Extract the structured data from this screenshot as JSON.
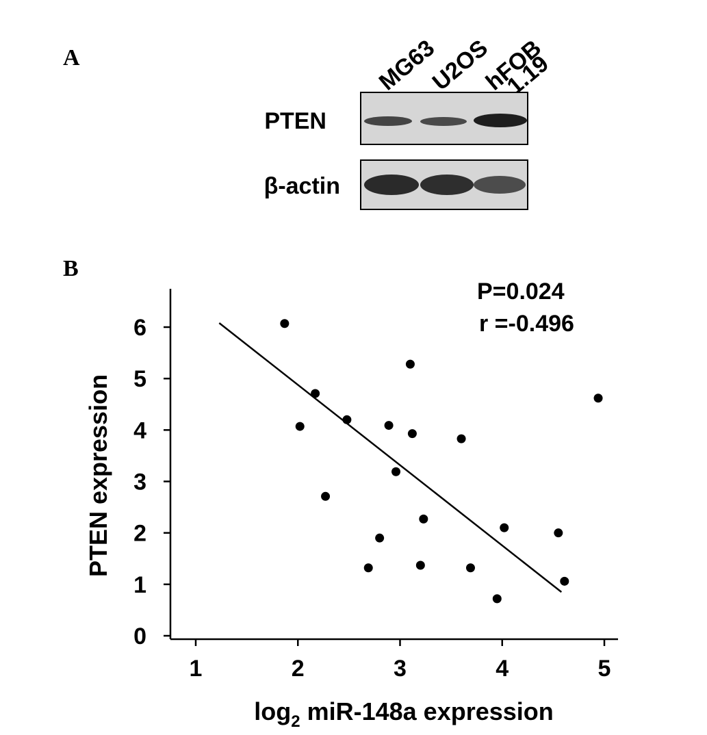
{
  "panel_a": {
    "letter": "A",
    "lanes": [
      "MG63",
      "U2OS",
      "hFOB",
      "1.19"
    ],
    "rows": [
      "PTEN",
      "β-actin"
    ]
  },
  "panel_b": {
    "letter": "B"
  },
  "chart_data": {
    "type": "scatter",
    "xlabel_main": "log",
    "xlabel_sub": "2",
    "xlabel_rest": " miR-148a expression",
    "ylabel": "PTEN expression",
    "xlim": [
      0.75,
      5.1
    ],
    "ylim": [
      -0.1,
      6.75
    ],
    "xticks": [
      1,
      2,
      3,
      4,
      5
    ],
    "yticks": [
      0,
      1,
      2,
      3,
      4,
      5,
      6
    ],
    "annotations": [
      "P=0.024",
      "r =-0.496"
    ],
    "grid": false,
    "points": [
      {
        "x": 1.87,
        "y": 6.07
      },
      {
        "x": 2.17,
        "y": 4.71
      },
      {
        "x": 2.02,
        "y": 4.07
      },
      {
        "x": 2.48,
        "y": 4.2
      },
      {
        "x": 2.27,
        "y": 2.71
      },
      {
        "x": 2.89,
        "y": 4.09
      },
      {
        "x": 2.96,
        "y": 3.19
      },
      {
        "x": 2.8,
        "y": 1.9
      },
      {
        "x": 2.69,
        "y": 1.32
      },
      {
        "x": 3.1,
        "y": 5.28
      },
      {
        "x": 3.12,
        "y": 3.93
      },
      {
        "x": 3.23,
        "y": 2.27
      },
      {
        "x": 3.2,
        "y": 1.37
      },
      {
        "x": 3.6,
        "y": 3.83
      },
      {
        "x": 3.69,
        "y": 1.32
      },
      {
        "x": 4.02,
        "y": 2.1
      },
      {
        "x": 3.95,
        "y": 0.72
      },
      {
        "x": 4.55,
        "y": 2.0
      },
      {
        "x": 4.61,
        "y": 1.06
      },
      {
        "x": 4.94,
        "y": 4.62
      }
    ],
    "fit_line": {
      "x1": 1.23,
      "y1": 6.08,
      "x2": 4.58,
      "y2": 0.85
    }
  }
}
